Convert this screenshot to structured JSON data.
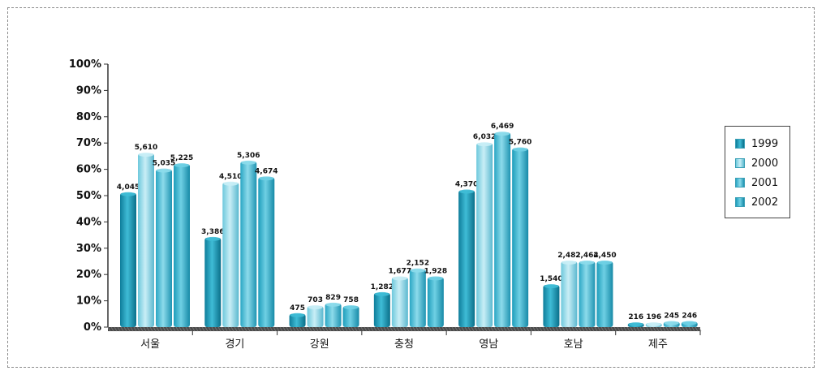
{
  "chart_data": {
    "type": "bar",
    "categories": [
      "서울",
      "경기",
      "강원",
      "충청",
      "영남",
      "호남",
      "제주"
    ],
    "series": [
      {
        "name": "1999",
        "values": [
          51,
          34,
          5,
          13,
          52,
          16,
          1.5
        ],
        "labels": [
          "4,045",
          "3,386",
          "475",
          "1,282",
          "4,370",
          "1,540",
          "216"
        ]
      },
      {
        "name": "2000",
        "values": [
          66,
          55,
          8,
          19,
          70,
          25,
          1.5
        ],
        "labels": [
          "5,610",
          "4,510",
          "703",
          "1,677",
          "6,032",
          "2,482",
          "196"
        ]
      },
      {
        "name": "2001",
        "values": [
          60,
          63,
          9,
          22,
          74,
          25,
          2
        ],
        "labels": [
          "5,035",
          "5,306",
          "829",
          "2,152",
          "6,469",
          "2,464",
          "245"
        ]
      },
      {
        "name": "2002",
        "values": [
          62,
          57,
          8,
          19,
          68,
          25,
          2
        ],
        "labels": [
          "5,225",
          "4,674",
          "758",
          "1,928",
          "5,760",
          "2,450",
          "246"
        ]
      }
    ],
    "yticks": [
      "100%",
      "90%",
      "80%",
      "70%",
      "60%",
      "50%",
      "40%",
      "30%",
      "20%",
      "10%",
      "0%"
    ],
    "ylim": [
      0,
      100
    ],
    "legend_position": "right",
    "grid": false,
    "colors": {
      "1999": [
        "#0e7d9a",
        "#3fbcd6",
        "#0a6f8a"
      ],
      "2000": [
        "#6dc8dc",
        "#c9eef6",
        "#5ab8cf"
      ],
      "2001": [
        "#2aa6c4",
        "#8ddbeb",
        "#1f94b2"
      ],
      "2002": [
        "#1e9dbb",
        "#6fd0e4",
        "#178aa7"
      ],
      "axis": "#333333"
    }
  }
}
